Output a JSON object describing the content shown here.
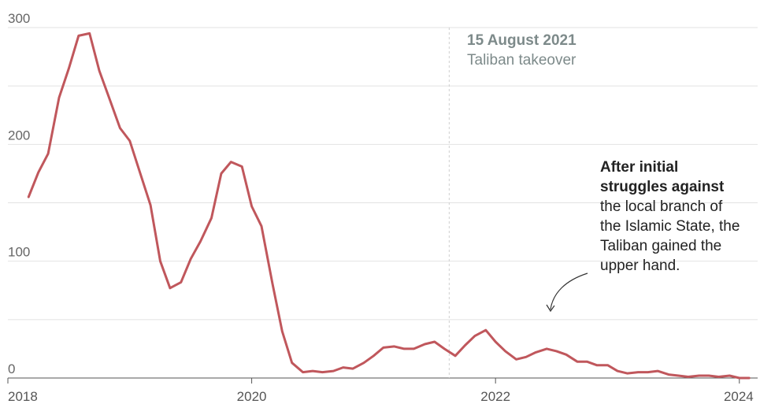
{
  "chart_data": {
    "type": "line",
    "title": "",
    "xlabel": "",
    "ylabel": "",
    "xlim": [
      2018.0,
      2024.15
    ],
    "ylim": [
      0,
      300
    ],
    "y_ticks": [
      "0",
      "100",
      "200",
      "300"
    ],
    "x_ticks": [
      {
        "label": "2018",
        "value": 2018.0
      },
      {
        "label": "2020",
        "value": 2020.0
      },
      {
        "label": "2022",
        "value": 2022.0
      },
      {
        "label": "2024",
        "value": 2024.0
      }
    ],
    "grid": true,
    "series": [
      {
        "color": "#c0575c",
        "x": [
          2018.17,
          2018.25,
          2018.33,
          2018.42,
          2018.5,
          2018.58,
          2018.67,
          2018.75,
          2018.83,
          2018.92,
          2019.0,
          2019.08,
          2019.17,
          2019.25,
          2019.33,
          2019.42,
          2019.5,
          2019.58,
          2019.67,
          2019.75,
          2019.83,
          2019.92,
          2020.0,
          2020.08,
          2020.17,
          2020.25,
          2020.33,
          2020.42,
          2020.5,
          2020.58,
          2020.67,
          2020.75,
          2020.83,
          2020.92,
          2021.0,
          2021.08,
          2021.17,
          2021.25,
          2021.33,
          2021.42,
          2021.5,
          2021.58,
          2021.67,
          2021.75,
          2021.83,
          2021.92,
          2022.0,
          2022.08,
          2022.17,
          2022.25,
          2022.33,
          2022.42,
          2022.5,
          2022.58,
          2022.67,
          2022.75,
          2022.83,
          2022.92,
          2023.0,
          2023.08,
          2023.17,
          2023.25,
          2023.33,
          2023.42,
          2023.5,
          2023.58,
          2023.67,
          2023.75,
          2023.83,
          2023.92,
          2024.0,
          2024.08
        ],
        "values": [
          155,
          176,
          192,
          240,
          265,
          293,
          295,
          263,
          240,
          214,
          203,
          177,
          148,
          100,
          77,
          82,
          102,
          117,
          137,
          175,
          185,
          181,
          147,
          130,
          81,
          40,
          13,
          5,
          6,
          5,
          6,
          9,
          8,
          13,
          19,
          26,
          27,
          25,
          25,
          29,
          31,
          25,
          19,
          28,
          36,
          41,
          31,
          23,
          16,
          18,
          22,
          25,
          23,
          20,
          14,
          14,
          11,
          11,
          6,
          4,
          5,
          5,
          6,
          3,
          2,
          1,
          2,
          2,
          1,
          2,
          0,
          0
        ]
      }
    ],
    "annotations": {
      "event_date": "15 August 2021",
      "event_label": "Taliban takeover",
      "event_x": 2021.62,
      "note_bold_1": "After initial",
      "note_bold_2": "struggles against",
      "note_3": "the local branch of",
      "note_4": "the Islamic State, the",
      "note_5": "Taliban gained the",
      "note_6": "upper hand."
    },
    "colors": {
      "line": "#c0575c",
      "grid": "#e2e2e2",
      "axis": "#555555"
    }
  }
}
